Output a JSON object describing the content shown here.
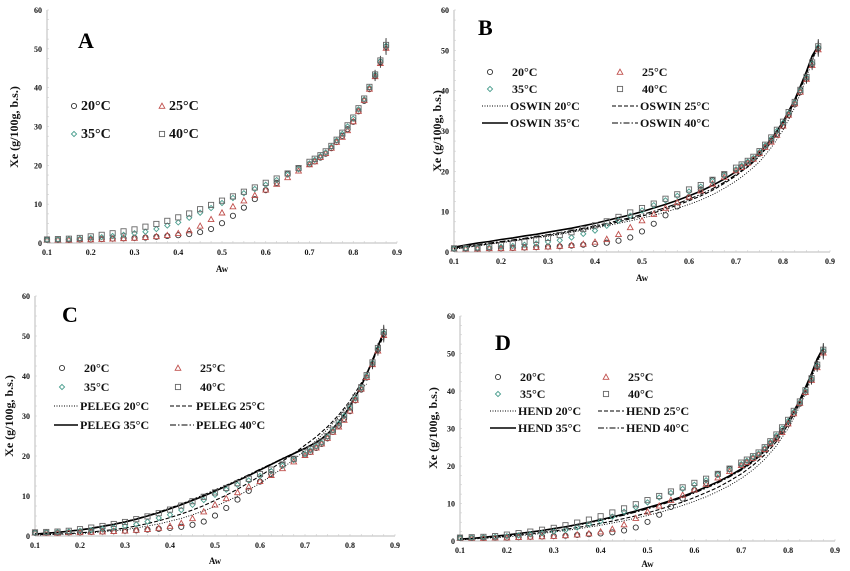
{
  "chart_data": [
    {
      "type": "scatter",
      "panel": "A",
      "title": "A",
      "xlabel": "Aw",
      "ylabel": "Xe (g/100g, b.s.)",
      "xlim": [
        0.1,
        0.9
      ],
      "ylim": [
        0,
        60
      ],
      "xticks": [
        "0.1",
        "0.2",
        "0.3",
        "0.4",
        "0.5",
        "0.6",
        "0.7",
        "0.8",
        "0.9"
      ],
      "yticks": [
        "0",
        "10",
        "20",
        "30",
        "40",
        "50",
        "60"
      ],
      "legend": {
        "placement": "upper-left",
        "columns": 2,
        "entries": [
          "20°C",
          "25°C",
          "35°C",
          "40°C"
        ]
      },
      "model_lines": []
    },
    {
      "type": "scatter",
      "panel": "B",
      "title": "B",
      "xlabel": "Aw",
      "ylabel": "Xe (g/100g, b.s.)",
      "xlim": [
        0.1,
        0.9
      ],
      "ylim": [
        0,
        60
      ],
      "xticks": [
        "0.1",
        "0.2",
        "0.3",
        "0.4",
        "0.5",
        "0.6",
        "0.7",
        "0.8",
        "0.9"
      ],
      "yticks": [
        "0",
        "10",
        "20",
        "30",
        "40",
        "50",
        "60"
      ],
      "legend": {
        "placement": "upper-left",
        "columns": 2,
        "entries": [
          "20°C",
          "25°C",
          "35°C",
          "40°C",
          "OSWIN 20°C",
          "OSWIN 25°C",
          "OSWIN 35°C",
          "OSWIN 40°C"
        ]
      },
      "model_lines": [
        "OSWIN 20°C",
        "OSWIN 25°C",
        "OSWIN 35°C",
        "OSWIN 40°C"
      ]
    },
    {
      "type": "scatter",
      "panel": "C",
      "title": "C",
      "xlabel": "Aw",
      "ylabel": "Xe (g/100g, b.s.)",
      "xlim": [
        0.1,
        0.9
      ],
      "ylim": [
        0,
        60
      ],
      "xticks": [
        "0.1",
        "0.2",
        "0.3",
        "0.4",
        "0.5",
        "0.6",
        "0.7",
        "0.8",
        "0.9"
      ],
      "yticks": [
        "0",
        "10",
        "20",
        "30",
        "40",
        "50",
        "60"
      ],
      "legend": {
        "placement": "upper-left",
        "columns": 2,
        "entries": [
          "20°C",
          "25°C",
          "35°C",
          "40°C",
          "PELEG 20°C",
          "PELEG 25°C",
          "PELEG 35°C",
          "PELEG 40°C"
        ]
      },
      "model_lines": [
        "PELEG 20°C",
        "PELEG 25°C",
        "PELEG 35°C",
        "PELEG 40°C"
      ]
    },
    {
      "type": "scatter",
      "panel": "D",
      "title": "D",
      "xlabel": "Aw",
      "ylabel": "Xe (g/100g, b.s.)",
      "xlim": [
        0.1,
        0.9
      ],
      "ylim": [
        0,
        60
      ],
      "xticks": [
        "0.1",
        "0.2",
        "0.3",
        "0.4",
        "0.5",
        "0.6",
        "0.7",
        "0.8",
        "0.9"
      ],
      "yticks": [
        "0",
        "10",
        "20",
        "30",
        "40",
        "50",
        "60"
      ],
      "legend": {
        "placement": "upper-left",
        "columns": 2,
        "entries": [
          "20°C",
          "25°C",
          "35°C",
          "40°C",
          "HEND 20°C",
          "HEND 25°C",
          "HEND 35°C",
          "HEND 40°C"
        ]
      },
      "model_lines": [
        "HEND 20°C",
        "HEND 25°C",
        "HEND 35°C",
        "HEND 40°C"
      ]
    }
  ],
  "experimental": {
    "x": [
      0.1,
      0.125,
      0.15,
      0.175,
      0.2,
      0.225,
      0.25,
      0.275,
      0.3,
      0.325,
      0.35,
      0.375,
      0.4,
      0.425,
      0.45,
      0.475,
      0.5,
      0.525,
      0.55,
      0.575,
      0.6,
      0.625,
      0.65,
      0.675,
      0.7,
      0.712,
      0.725,
      0.737,
      0.75,
      0.762,
      0.775,
      0.787,
      0.8,
      0.812,
      0.825,
      0.837,
      0.85,
      0.862,
      0.875
    ],
    "series": [
      {
        "name": "20°C",
        "marker": "circle",
        "color": "#333333",
        "values": [
          0.8,
          0.8,
          0.8,
          0.9,
          0.9,
          1.0,
          1.1,
          1.2,
          1.3,
          1.4,
          1.6,
          1.8,
          2.0,
          2.3,
          2.8,
          3.6,
          5.1,
          7.0,
          9.1,
          11.3,
          13.6,
          15.5,
          17.8,
          19.2,
          20.3,
          21.0,
          22.0,
          23.0,
          24.4,
          26.0,
          27.6,
          29.3,
          31.2,
          33.9,
          36.6,
          39.6,
          43.0,
          46.6,
          50.5
        ]
      },
      {
        "name": "25°C",
        "marker": "triangle",
        "color": "#c0504d",
        "values": [
          0.8,
          0.8,
          0.8,
          0.9,
          0.9,
          1.0,
          1.1,
          1.2,
          1.3,
          1.5,
          1.7,
          2.0,
          2.5,
          3.2,
          4.4,
          6.1,
          7.8,
          9.4,
          10.9,
          12.3,
          13.7,
          15.2,
          16.9,
          18.6,
          20.2,
          21.0,
          22.1,
          23.1,
          24.5,
          26.0,
          27.3,
          29.0,
          31.3,
          34.0,
          36.8,
          39.7,
          42.9,
          46.3,
          50.2
        ]
      },
      {
        "name": "35°C",
        "marker": "diamond",
        "color": "#4a9e8e",
        "values": [
          0.8,
          0.9,
          1.0,
          1.1,
          1.3,
          1.5,
          1.8,
          2.1,
          2.5,
          2.9,
          3.6,
          4.5,
          5.3,
          6.5,
          7.8,
          9.0,
          10.3,
          11.6,
          12.8,
          13.9,
          15.0,
          16.2,
          17.6,
          19.0,
          20.5,
          21.4,
          22.4,
          23.3,
          24.8,
          26.4,
          28.1,
          30.0,
          32.0,
          34.4,
          37.0,
          40.0,
          43.3,
          46.8,
          50.8
        ]
      },
      {
        "name": "40°C",
        "marker": "square",
        "color": "#666666",
        "values": [
          0.9,
          1.0,
          1.1,
          1.3,
          1.7,
          2.1,
          2.5,
          3.0,
          3.5,
          4.2,
          4.9,
          5.7,
          6.6,
          7.6,
          8.7,
          9.8,
          10.9,
          12.0,
          13.2,
          14.3,
          15.5,
          16.6,
          17.9,
          19.3,
          20.9,
          21.7,
          22.6,
          23.6,
          25.0,
          26.6,
          28.4,
          30.3,
          32.3,
          34.7,
          37.2,
          40.2,
          43.4,
          47.0,
          51.0
        ]
      }
    ]
  },
  "models": {
    "B": [
      {
        "name": "OSWIN 20°C",
        "dash": "dotted",
        "values": [
          0.7,
          1.1,
          1.5,
          1.9,
          2.3,
          2.7,
          3.1,
          3.5,
          3.9,
          4.4,
          4.9,
          5.4,
          5.9,
          6.5,
          7.1,
          7.7,
          8.4,
          9.1,
          9.9,
          10.8,
          11.8,
          12.9,
          14.2,
          15.8,
          17.6,
          18.6,
          19.8,
          21.0,
          22.4,
          24.0,
          25.9,
          27.9,
          30.2,
          32.8,
          35.9,
          39.3,
          43.2,
          47.4,
          50.5
        ]
      },
      {
        "name": "OSWIN 25°C",
        "dash": "dashed",
        "values": [
          0.8,
          1.2,
          1.6,
          2.0,
          2.4,
          2.8,
          3.2,
          3.7,
          4.1,
          4.6,
          5.1,
          5.6,
          6.2,
          6.8,
          7.5,
          8.2,
          8.9,
          9.7,
          10.6,
          11.6,
          12.7,
          13.9,
          15.3,
          17.0,
          18.9,
          20.0,
          21.1,
          22.3,
          23.8,
          25.4,
          27.2,
          29.2,
          31.5,
          34.1,
          37.1,
          40.4,
          44.2,
          48.0,
          50.8
        ]
      },
      {
        "name": "OSWIN 35°C",
        "dash": "solid",
        "values": [
          1.2,
          1.7,
          2.2,
          2.6,
          3.1,
          3.5,
          4.0,
          4.4,
          4.9,
          5.4,
          5.9,
          6.5,
          7.1,
          7.8,
          8.5,
          9.2,
          10.0,
          10.9,
          11.8,
          12.8,
          13.9,
          15.1,
          16.5,
          18.1,
          19.9,
          20.9,
          22.0,
          23.2,
          24.6,
          26.2,
          28.0,
          30.0,
          32.3,
          34.9,
          37.8,
          41.1,
          44.8,
          48.6,
          51.2
        ]
      },
      {
        "name": "OSWIN 40°C",
        "dash": "dashdot",
        "values": [
          1.0,
          1.4,
          1.8,
          2.2,
          2.6,
          3.0,
          3.4,
          3.9,
          4.3,
          4.8,
          5.3,
          5.9,
          6.5,
          7.1,
          7.8,
          8.5,
          9.3,
          10.1,
          11.0,
          12.0,
          13.1,
          14.3,
          15.7,
          17.3,
          19.2,
          20.2,
          21.3,
          22.6,
          24.0,
          25.6,
          27.4,
          29.5,
          31.8,
          34.4,
          37.4,
          40.8,
          44.5,
          48.4,
          51.0
        ]
      }
    ],
    "C": [
      {
        "name": "PELEG 20°C",
        "dash": "dotted",
        "values": [
          0.2,
          0.3,
          0.4,
          0.5,
          0.6,
          0.8,
          1.0,
          1.3,
          1.6,
          2.0,
          2.5,
          3.0,
          3.7,
          4.4,
          5.3,
          6.3,
          7.4,
          8.6,
          10.0,
          11.5,
          13.2,
          15.0,
          17.0,
          19.1,
          21.4,
          22.6,
          23.9,
          25.2,
          26.7,
          28.2,
          29.8,
          31.4,
          33.2,
          35.0,
          36.8,
          38.0,
          null,
          null,
          null
        ]
      },
      {
        "name": "PELEG 25°C",
        "dash": "dashed",
        "values": [
          0.3,
          0.4,
          0.5,
          0.6,
          0.8,
          1.0,
          1.3,
          1.6,
          2.0,
          2.5,
          3.1,
          3.8,
          4.6,
          5.5,
          6.5,
          7.6,
          8.9,
          10.2,
          11.7,
          13.3,
          15.0,
          16.8,
          18.7,
          20.6,
          22.7,
          23.7,
          24.8,
          26.0,
          27.3,
          28.7,
          30.3,
          31.9,
          33.8,
          35.9,
          38.2,
          40.8,
          43.6,
          46.8,
          50.2
        ]
      },
      {
        "name": "PELEG 35°C",
        "dash": "solid",
        "values": [
          0.5,
          0.7,
          0.9,
          1.2,
          1.5,
          1.9,
          2.4,
          2.9,
          3.5,
          4.2,
          5.0,
          5.8,
          6.8,
          7.8,
          8.9,
          10.0,
          11.2,
          12.5,
          13.8,
          15.1,
          16.5,
          17.9,
          19.3,
          20.6,
          21.9,
          22.6,
          23.4,
          24.3,
          25.5,
          26.9,
          28.5,
          30.3,
          32.4,
          34.8,
          37.5,
          40.4,
          43.8,
          47.4,
          51.0
        ]
      },
      {
        "name": "PELEG 40°C",
        "dash": "dashdot",
        "values": [
          0.5,
          0.7,
          0.9,
          1.2,
          1.6,
          2.0,
          2.5,
          3.0,
          3.6,
          4.3,
          5.1,
          6.0,
          7.0,
          8.0,
          9.1,
          10.3,
          11.5,
          12.7,
          14.0,
          15.3,
          16.7,
          18.0,
          19.4,
          20.7,
          22.0,
          22.7,
          23.5,
          24.4,
          25.6,
          27.0,
          28.6,
          30.4,
          32.5,
          34.9,
          37.6,
          40.6,
          44.0,
          47.6,
          51.2
        ]
      }
    ],
    "D": [
      {
        "name": "HEND 20°C",
        "dash": "dotted",
        "values": [
          0.3,
          0.5,
          0.7,
          0.9,
          1.1,
          1.4,
          1.7,
          2.0,
          2.4,
          2.8,
          3.2,
          3.7,
          4.2,
          4.8,
          5.4,
          6.1,
          6.8,
          7.6,
          8.5,
          9.5,
          10.6,
          11.8,
          13.2,
          14.8,
          16.7,
          17.8,
          19.0,
          20.3,
          21.8,
          23.5,
          25.4,
          27.6,
          30.0,
          32.8,
          35.9,
          39.4,
          43.3,
          47.5,
          51.0
        ]
      },
      {
        "name": "HEND 25°C",
        "dash": "dashed",
        "values": [
          0.4,
          0.6,
          0.8,
          1.0,
          1.3,
          1.6,
          1.9,
          2.3,
          2.7,
          3.1,
          3.6,
          4.1,
          4.7,
          5.3,
          6.0,
          6.7,
          7.5,
          8.4,
          9.4,
          10.4,
          11.6,
          12.9,
          14.3,
          16.0,
          17.9,
          19.0,
          20.2,
          21.5,
          23.0,
          24.6,
          26.5,
          28.6,
          31.0,
          33.7,
          36.8,
          40.2,
          44.0,
          48.0,
          51.2
        ]
      },
      {
        "name": "HEND 35°C",
        "dash": "solid",
        "values": [
          0.5,
          0.7,
          1.0,
          1.3,
          1.6,
          2.0,
          2.4,
          2.8,
          3.3,
          3.8,
          4.4,
          5.0,
          5.7,
          6.4,
          7.2,
          8.0,
          8.9,
          9.8,
          10.8,
          11.9,
          13.1,
          14.4,
          15.8,
          17.4,
          19.2,
          20.2,
          21.4,
          22.7,
          24.1,
          25.7,
          27.6,
          29.6,
          32.0,
          34.6,
          37.6,
          41.0,
          44.7,
          48.6,
          51.6
        ]
      },
      {
        "name": "HEND 40°C",
        "dash": "dashdot",
        "values": [
          0.5,
          0.7,
          0.9,
          1.2,
          1.5,
          1.9,
          2.3,
          2.7,
          3.2,
          3.7,
          4.2,
          4.8,
          5.5,
          6.2,
          6.9,
          7.7,
          8.6,
          9.5,
          10.5,
          11.6,
          12.8,
          14.1,
          15.5,
          17.1,
          18.9,
          19.9,
          21.1,
          22.4,
          23.8,
          25.4,
          27.2,
          29.3,
          31.6,
          34.3,
          37.3,
          40.6,
          44.4,
          48.3,
          51.4
        ]
      }
    ]
  }
}
